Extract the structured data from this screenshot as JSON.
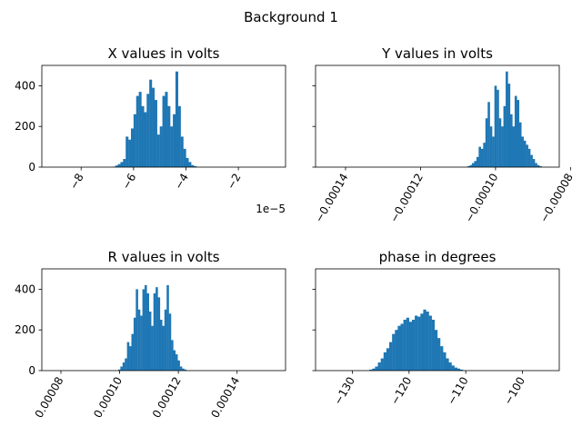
{
  "figure": {
    "title": "Background 1"
  },
  "chart_data": [
    {
      "type": "bar",
      "title": "X values in volts",
      "xlabel": "",
      "ylabel": "",
      "xlim": [
        -9.5e-05,
        -2e-06
      ],
      "ylim": [
        0,
        500
      ],
      "xticks": [
        -8e-05,
        -6e-05,
        -4e-05,
        -2e-05
      ],
      "xtick_labels": [
        "−8",
        "−6",
        "−4",
        "−2"
      ],
      "xtick_rotation": -60,
      "offset_label": "1e−5",
      "yticks": [
        0,
        200,
        400
      ],
      "ytick_labels": [
        "0",
        "200",
        "400"
      ],
      "bin_start": -6.8e-05,
      "bin_width": 1e-06,
      "values": [
        2,
        8,
        15,
        25,
        40,
        150,
        135,
        190,
        260,
        350,
        370,
        300,
        270,
        360,
        430,
        390,
        330,
        160,
        200,
        350,
        370,
        300,
        200,
        260,
        470,
        300,
        150,
        90,
        45,
        25,
        10,
        5
      ]
    },
    {
      "type": "bar",
      "title": "Y values in volts",
      "xlabel": "",
      "ylabel": "",
      "xlim": [
        -0.000148,
        -8.3e-05
      ],
      "ylim": [
        0,
        500
      ],
      "xticks": [
        -0.00014,
        -0.00012,
        -0.0001,
        -8e-05
      ],
      "xtick_labels": [
        "−0.00014",
        "−0.00012",
        "−0.00010",
        "−0.00008"
      ],
      "xtick_rotation": -60,
      "yticks": [
        0,
        200,
        400
      ],
      "ytick_labels": [
        "",
        "",
        ""
      ],
      "bin_start": -0.0001075,
      "bin_width": 6e-07,
      "values": [
        5,
        10,
        20,
        30,
        50,
        100,
        90,
        120,
        240,
        320,
        200,
        150,
        400,
        380,
        240,
        200,
        300,
        470,
        410,
        260,
        200,
        350,
        330,
        220,
        150,
        130,
        110,
        90,
        60,
        40,
        20,
        10,
        5
      ]
    },
    {
      "type": "bar",
      "title": "R values in volts",
      "xlabel": "",
      "ylabel": "",
      "xlim": [
        7.35e-05,
        0.0001565
      ],
      "ylim": [
        0,
        500
      ],
      "xticks": [
        8e-05,
        0.0001,
        0.00012,
        0.00014
      ],
      "xtick_labels": [
        "0.00008",
        "0.00010",
        "0.00012",
        "0.00014"
      ],
      "xtick_rotation": -60,
      "yticks": [
        0,
        200,
        400
      ],
      "ytick_labels": [
        "0",
        "200",
        "400"
      ],
      "bin_start": 9.95e-05,
      "bin_width": 7.5e-07,
      "values": [
        5,
        20,
        40,
        60,
        140,
        120,
        180,
        260,
        400,
        300,
        270,
        400,
        420,
        380,
        290,
        220,
        380,
        410,
        360,
        250,
        220,
        300,
        420,
        280,
        150,
        100,
        80,
        50,
        20,
        10,
        5
      ]
    },
    {
      "type": "bar",
      "title": "phase in degrees",
      "xlabel": "",
      "ylabel": "",
      "xlim": [
        -136.5,
        -93.5
      ],
      "ylim": [
        0,
        500
      ],
      "xticks": [
        -130,
        -120,
        -110,
        -100
      ],
      "xtick_labels": [
        "−130",
        "−120",
        "−110",
        "−100"
      ],
      "xtick_rotation": -60,
      "yticks": [
        0,
        200,
        400
      ],
      "ytick_labels": [
        "",
        "",
        ""
      ],
      "bin_start": -127,
      "bin_width": 0.5,
      "values": [
        5,
        10,
        20,
        40,
        60,
        90,
        110,
        140,
        180,
        200,
        220,
        230,
        250,
        260,
        240,
        250,
        270,
        265,
        280,
        300,
        290,
        270,
        250,
        200,
        160,
        120,
        90,
        60,
        40,
        25,
        15,
        10,
        5
      ]
    }
  ]
}
